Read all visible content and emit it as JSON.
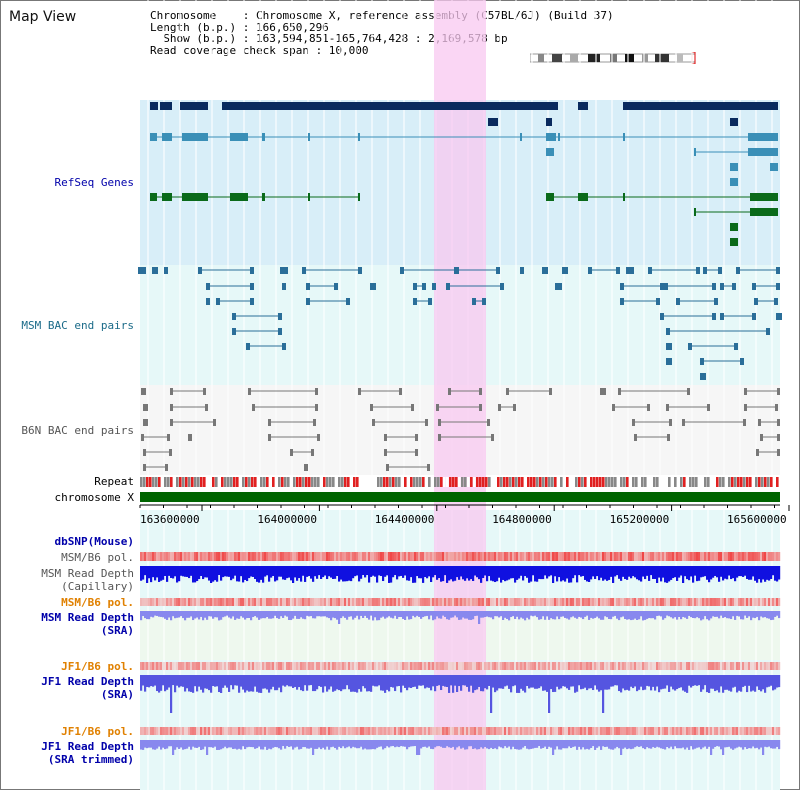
{
  "header": {
    "title": "Map View",
    "chromosome_line": "Chromosome    : Chromosome X, reference assembly (C57BL/6J) (Build 37)",
    "length_line": "Length (b.p.) : 166,650,296",
    "show_line": "  Show (b.p.) : 163,594,851-165,764,428 : 2,169,578 bp",
    "span_line": "Read coverage check span : 10,000"
  },
  "tracks": {
    "refseq": "RefSeq Genes",
    "msm_bac": "MSM BAC end pairs",
    "b6n_bac": "B6N BAC end pairs",
    "repeat": "Repeat",
    "chromosome": "chromosome X",
    "dbsnp": "dbSNP(Mouse)",
    "msm_b6_pol_1": "MSM/B6 pol.",
    "msm_depth_cap_1": "MSM Read Depth",
    "msm_depth_cap_2": "(Capillary)",
    "msm_b6_pol_2": "MSM/B6 pol.",
    "msm_depth_sra_1": "MSM Read Depth",
    "msm_depth_sra_2": "(SRA)",
    "jf1_b6_pol_1": "JF1/B6 pol.",
    "jf1_depth_sra_1": "JF1 Read Depth",
    "jf1_depth_sra_2": "(SRA)",
    "jf1_b6_pol_2": "JF1/B6 pol.",
    "jf1_depth_trim_1": "JF1 Read Depth",
    "jf1_depth_trim_2": "(SRA trimmed)"
  },
  "axis": {
    "ticks": [
      "163600000",
      "164000000",
      "164400000",
      "164800000",
      "165200000",
      "165600000"
    ]
  },
  "colors": {
    "refseq_dark": "#0a2a5e",
    "refseq_light": "#3a8fb7",
    "refseq_green": "#0a6a1a",
    "bac_line": "#2a6e99",
    "b6n_line": "#777777",
    "chrom_bar": "#006400",
    "highlight": "#f8c8f0",
    "label_blue": "#0000aa",
    "label_orange": "#e08000",
    "label_gray": "#555555"
  }
}
